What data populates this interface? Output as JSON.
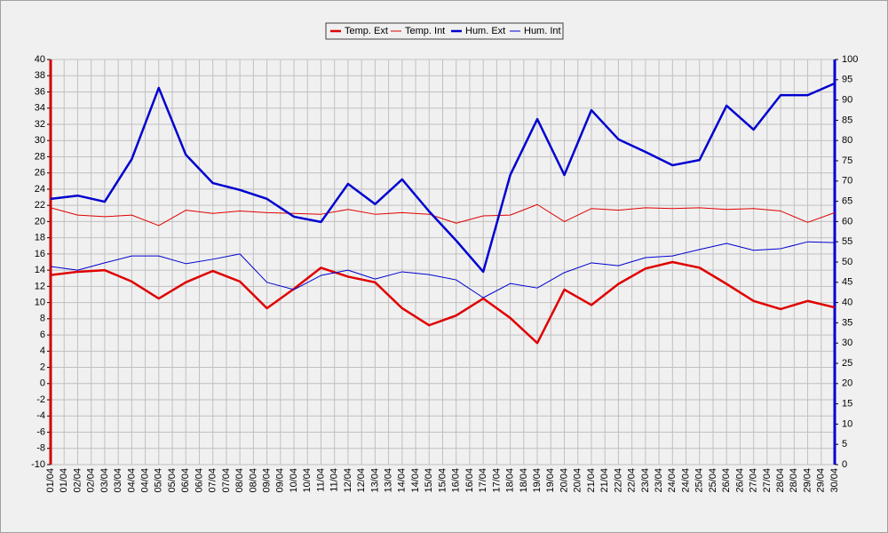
{
  "chart_data": {
    "type": "line",
    "categories": [
      "01/04",
      "02/04",
      "03/04",
      "04/04",
      "05/04",
      "06/04",
      "07/04",
      "08/04",
      "09/04",
      "10/04",
      "11/04",
      "12/04",
      "13/04",
      "14/04",
      "15/04",
      "16/04",
      "17/04",
      "18/04",
      "19/04",
      "20/04",
      "21/04",
      "22/04",
      "23/04",
      "24/04",
      "25/04",
      "26/04",
      "27/04",
      "28/04",
      "29/04",
      "30/04"
    ],
    "series": [
      {
        "name": "Temp. Ext",
        "color": "#e00000",
        "line_width": 2.5,
        "axis": "y",
        "values": [
          13.4,
          13.8,
          14.0,
          12.6,
          10.5,
          12.5,
          13.9,
          12.6,
          9.3,
          11.7,
          14.3,
          13.2,
          12.5,
          9.3,
          7.2,
          8.4,
          10.5,
          8.1,
          5.0,
          11.6,
          9.7,
          12.3,
          14.2,
          15.0,
          14.3,
          12.3,
          10.2,
          9.2,
          10.2,
          9.4
        ]
      },
      {
        "name": "Temp. Int",
        "color": "#e00000",
        "line_width": 1,
        "axis": "y",
        "values": [
          21.7,
          20.8,
          20.6,
          20.8,
          19.5,
          21.4,
          21.0,
          21.3,
          21.1,
          21.0,
          20.9,
          21.5,
          20.9,
          21.1,
          20.9,
          19.8,
          20.7,
          20.8,
          22.1,
          20.0,
          21.6,
          21.4,
          21.7,
          21.6,
          21.7,
          21.5,
          21.6,
          21.3,
          19.9,
          21.1
        ]
      },
      {
        "name": "Hum. Ext",
        "color": "#0000d0",
        "line_width": 2.5,
        "axis": "y2",
        "values": [
          65.6,
          66.4,
          64.9,
          75.4,
          93.0,
          76.5,
          69.5,
          67.8,
          65.6,
          61.2,
          59.9,
          69.3,
          64.3,
          70.4,
          62.5,
          55.3,
          47.6,
          71.5,
          85.3,
          71.5,
          87.5,
          80.3,
          77.2,
          73.9,
          75.2,
          88.6,
          82.7,
          91.2,
          91.2,
          94.1
        ]
      },
      {
        "name": "Hum. Int",
        "color": "#0000d0",
        "line_width": 1,
        "axis": "y2",
        "values": [
          48.9,
          48.0,
          49.8,
          51.5,
          51.5,
          49.6,
          50.7,
          52.0,
          45.0,
          43.2,
          46.7,
          48.0,
          45.8,
          47.6,
          46.9,
          45.6,
          41.2,
          44.7,
          43.6,
          47.4,
          49.8,
          49.1,
          51.1,
          51.5,
          53.1,
          54.6,
          52.9,
          53.3,
          55.0,
          54.8
        ]
      }
    ],
    "ylim": [
      -10,
      40
    ],
    "yticks": [
      -10,
      -8,
      -6,
      -4,
      -2,
      0,
      2,
      4,
      6,
      8,
      10,
      12,
      14,
      16,
      18,
      20,
      22,
      24,
      26,
      28,
      30,
      32,
      34,
      36,
      38,
      40
    ],
    "y2lim": [
      0,
      100
    ],
    "y2ticks": [
      0,
      5,
      10,
      15,
      20,
      25,
      30,
      35,
      40,
      45,
      50,
      55,
      60,
      65,
      70,
      75,
      80,
      85,
      90,
      95,
      100
    ],
    "y_axis_color": "#d00000",
    "y2_axis_color": "#0000d0",
    "grid": true,
    "legend": "top"
  }
}
